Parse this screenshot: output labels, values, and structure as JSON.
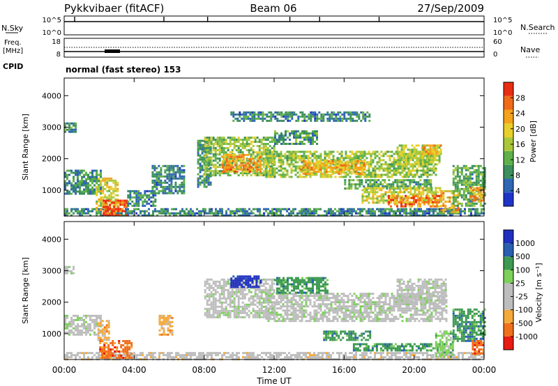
{
  "header": {
    "radar": "Pykkvibaer (fitACF)",
    "beam": "Beam 06",
    "date": "27/Sep/2009"
  },
  "chart_data": {
    "type": "heatmap",
    "x_ticks": [
      "00:00",
      "04:00",
      "08:00",
      "12:00",
      "16:00",
      "20:00",
      "00:00"
    ],
    "x_hours": [
      0,
      4,
      8,
      12,
      16,
      20,
      24
    ],
    "xlabel": "Time UT",
    "xlim": [
      0,
      24
    ],
    "noise_panel": {
      "left_label": "N.Sky",
      "right_label": "N.Search",
      "left_ticks": [
        "10^5",
        "10^0"
      ],
      "right_ticks": [
        "10^5",
        "10^0"
      ],
      "spikes_hours": [
        0.6,
        5.7,
        8.2,
        12.9,
        14.6,
        18.0
      ]
    },
    "freq_panel": {
      "left_label_1": "Freq.",
      "left_label_2": "[MHz]",
      "right_label": "Nave",
      "left_ticks": [
        "18",
        "8"
      ],
      "right_ticks": [
        "60",
        "0"
      ]
    },
    "cpid": {
      "label": "CPID",
      "text": "normal (fast stereo) 153"
    },
    "power_panel": {
      "ylabel": "Slant Range [km]",
      "yticks": [
        "4000",
        "3000",
        "2000",
        "1000"
      ],
      "ytick_values": [
        4000,
        3000,
        2000,
        1000
      ],
      "ylim": [
        180,
        4560
      ],
      "colorbar_label": "Power [dB]",
      "colorbar_ticks": [
        "28",
        "24",
        "20",
        "16",
        "12",
        "8",
        "4"
      ],
      "colorbar_values": [
        28,
        24,
        20,
        16,
        12,
        8,
        4
      ],
      "colorbar_range": [
        0,
        32
      ],
      "colors": [
        "#1f33c8",
        "#2e66b4",
        "#3b8f5c",
        "#5fb04a",
        "#a8c83a",
        "#e8cf2a",
        "#f5a21c",
        "#f06a1a",
        "#e82d12"
      ],
      "bands": [
        {
          "t0": 0.0,
          "t1": 24.0,
          "r0": 190,
          "r1": 430,
          "db": 8
        },
        {
          "t0": 0.0,
          "t1": 2.1,
          "r0": 900,
          "r1": 1650,
          "db": 9
        },
        {
          "t0": 0.0,
          "t1": 0.6,
          "r0": 2850,
          "r1": 3150,
          "db": 10
        },
        {
          "t0": 1.8,
          "t1": 3.0,
          "r0": 350,
          "r1": 1400,
          "db": 18
        },
        {
          "t0": 2.2,
          "t1": 3.6,
          "r0": 200,
          "r1": 700,
          "db": 28
        },
        {
          "t0": 3.6,
          "t1": 5.2,
          "r0": 500,
          "r1": 1000,
          "db": 8
        },
        {
          "t0": 5.0,
          "t1": 6.9,
          "r0": 900,
          "r1": 1800,
          "db": 8
        },
        {
          "t0": 7.6,
          "t1": 8.4,
          "r0": 1100,
          "r1": 2600,
          "db": 9
        },
        {
          "t0": 8.0,
          "t1": 12.0,
          "r0": 1500,
          "r1": 2700,
          "db": 14
        },
        {
          "t0": 9.0,
          "t1": 11.2,
          "r0": 1600,
          "r1": 2150,
          "db": 24
        },
        {
          "t0": 11.5,
          "t1": 21.2,
          "r0": 1450,
          "r1": 2250,
          "db": 15
        },
        {
          "t0": 13.5,
          "t1": 17.2,
          "r0": 1550,
          "r1": 1950,
          "db": 22
        },
        {
          "t0": 19.0,
          "t1": 21.5,
          "r0": 1800,
          "r1": 2450,
          "db": 16
        },
        {
          "t0": 20.4,
          "t1": 21.5,
          "r0": 2150,
          "r1": 2450,
          "db": 22
        },
        {
          "t0": 9.5,
          "t1": 17.5,
          "r0": 3200,
          "r1": 3500,
          "db": 8
        },
        {
          "t0": 12.0,
          "t1": 14.5,
          "r0": 2500,
          "r1": 2900,
          "db": 10
        },
        {
          "t0": 16.0,
          "t1": 21.0,
          "r0": 1050,
          "r1": 1350,
          "db": 11
        },
        {
          "t0": 17.0,
          "t1": 21.5,
          "r0": 600,
          "r1": 1100,
          "db": 18
        },
        {
          "t0": 18.5,
          "t1": 21.5,
          "r0": 500,
          "r1": 850,
          "db": 25
        },
        {
          "t0": 21.5,
          "t1": 22.5,
          "r0": 300,
          "r1": 1000,
          "db": 22
        },
        {
          "t0": 22.2,
          "t1": 24.0,
          "r0": 500,
          "r1": 1800,
          "db": 12
        },
        {
          "t0": 23.2,
          "t1": 24.0,
          "r0": 700,
          "r1": 1100,
          "db": 24
        }
      ]
    },
    "velocity_panel": {
      "ylabel": "Slant Range [km]",
      "yticks": [
        "4000",
        "3000",
        "2000",
        "1000"
      ],
      "ytick_values": [
        4000,
        3000,
        2000,
        1000
      ],
      "ylim": [
        180,
        4560
      ],
      "colorbar_label": "Velocity [m s⁻¹]",
      "colorbar_ticks": [
        "1000",
        "500",
        "100",
        "25",
        "-25",
        "-100",
        "-500",
        "-1000"
      ],
      "colors": [
        "#e81a12",
        "#f0701c",
        "#f5a93a",
        "#bdbdbd",
        "#bdbdbd",
        "#7dd05a",
        "#3e9a52",
        "#2a5fb0",
        "#1f2fc0"
      ],
      "bands": [
        {
          "t0": 0.0,
          "t1": 24.0,
          "r0": 190,
          "r1": 420,
          "cls": 3
        },
        {
          "t0": 0.0,
          "t1": 2.1,
          "r0": 1000,
          "r1": 1600,
          "cls": 4
        },
        {
          "t0": 0.0,
          "t1": 0.5,
          "r0": 2900,
          "r1": 3150,
          "cls": 4
        },
        {
          "t0": 2.0,
          "t1": 3.8,
          "r0": 250,
          "r1": 800,
          "cls": 1
        },
        {
          "t0": 1.9,
          "t1": 2.6,
          "r0": 800,
          "r1": 1500,
          "cls": 2
        },
        {
          "t0": 5.4,
          "t1": 6.2,
          "r0": 1000,
          "r1": 1600,
          "cls": 2
        },
        {
          "t0": 8.0,
          "t1": 12.0,
          "r0": 1500,
          "r1": 2750,
          "cls": 4
        },
        {
          "t0": 9.5,
          "t1": 11.2,
          "r0": 2500,
          "r1": 2850,
          "cls": 8
        },
        {
          "t0": 11.5,
          "t1": 21.8,
          "r0": 1400,
          "r1": 2300,
          "cls": 4
        },
        {
          "t0": 19.0,
          "t1": 21.8,
          "r0": 2000,
          "r1": 2750,
          "cls": 4
        },
        {
          "t0": 12.0,
          "t1": 15.0,
          "r0": 2300,
          "r1": 2800,
          "cls": 6
        },
        {
          "t0": 14.8,
          "t1": 17.5,
          "r0": 800,
          "r1": 1100,
          "cls": 6
        },
        {
          "t0": 16.5,
          "t1": 21.5,
          "r0": 480,
          "r1": 700,
          "cls": 6
        },
        {
          "t0": 21.2,
          "t1": 22.2,
          "r0": 300,
          "r1": 1100,
          "cls": 5
        },
        {
          "t0": 22.2,
          "t1": 24.0,
          "r0": 800,
          "r1": 1800,
          "cls": 6
        },
        {
          "t0": 23.3,
          "t1": 24.0,
          "r0": 400,
          "r1": 800,
          "cls": 1
        }
      ]
    }
  }
}
